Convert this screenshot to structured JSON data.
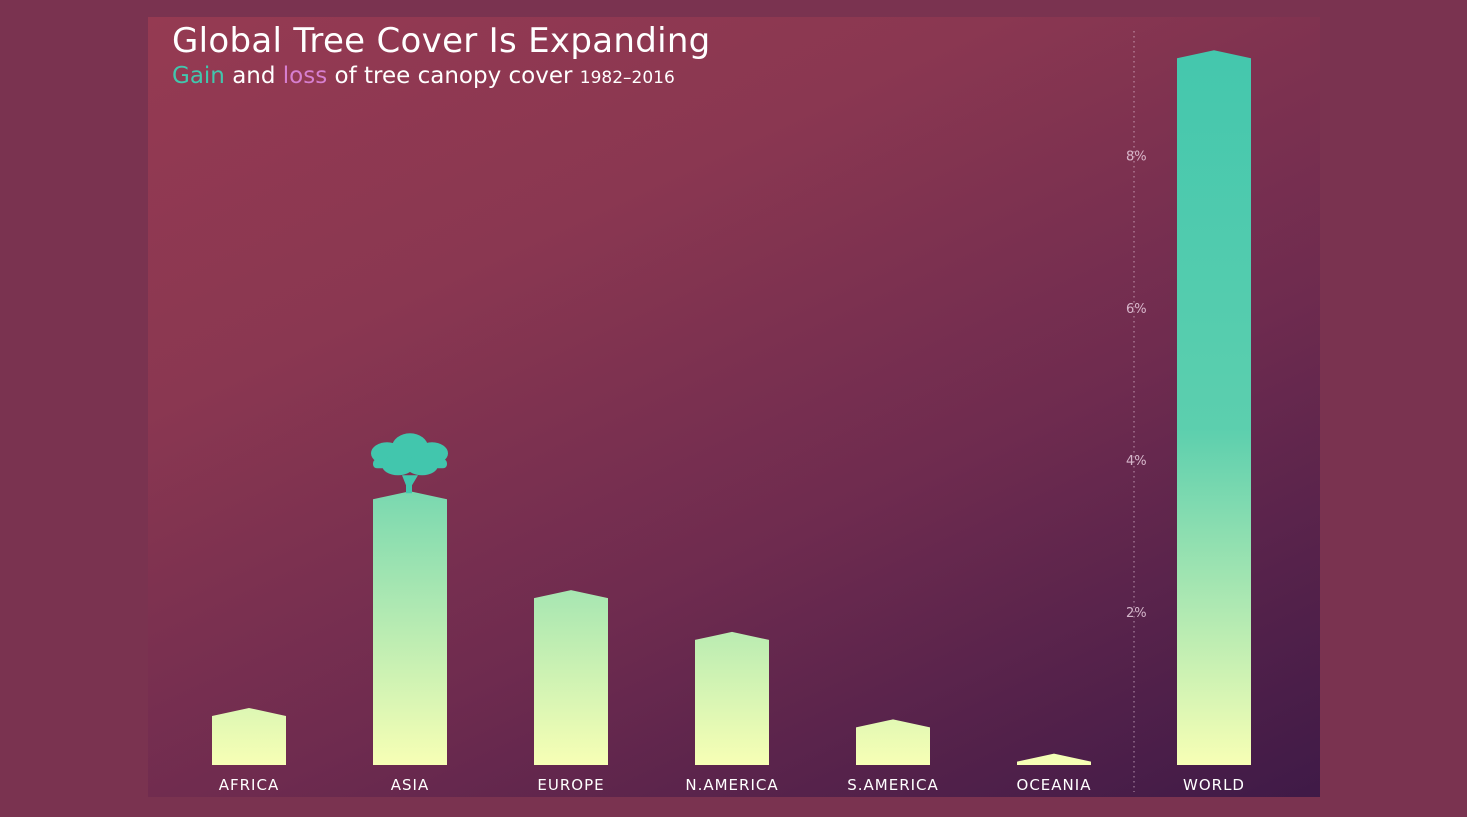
{
  "chart_data": {
    "type": "bar",
    "title": "Global Tree Cover Is Expanding",
    "subtitle": {
      "gain_word": "Gain",
      "and_word": "and",
      "loss_word": "loss",
      "rest": "of tree canopy cover",
      "years": "1982–2016"
    },
    "categories": [
      "AFRICA",
      "ASIA",
      "EUROPE",
      "N.AMERICA",
      "S.AMERICA",
      "OCEANIA",
      "WORLD"
    ],
    "values": [
      0.75,
      3.6,
      2.3,
      1.75,
      0.6,
      0.15,
      9.4
    ],
    "ylim": [
      0,
      9.6
    ],
    "yticks": [
      2,
      4,
      6,
      8
    ],
    "ytick_suffix": "%",
    "grid": false,
    "colors": {
      "bar_top": "#42c6ad",
      "bar_bottom": "#f7ffb5",
      "gain": "#42c6ad",
      "loss": "#d77fd0"
    },
    "annotation_icon": "tree-icon"
  }
}
